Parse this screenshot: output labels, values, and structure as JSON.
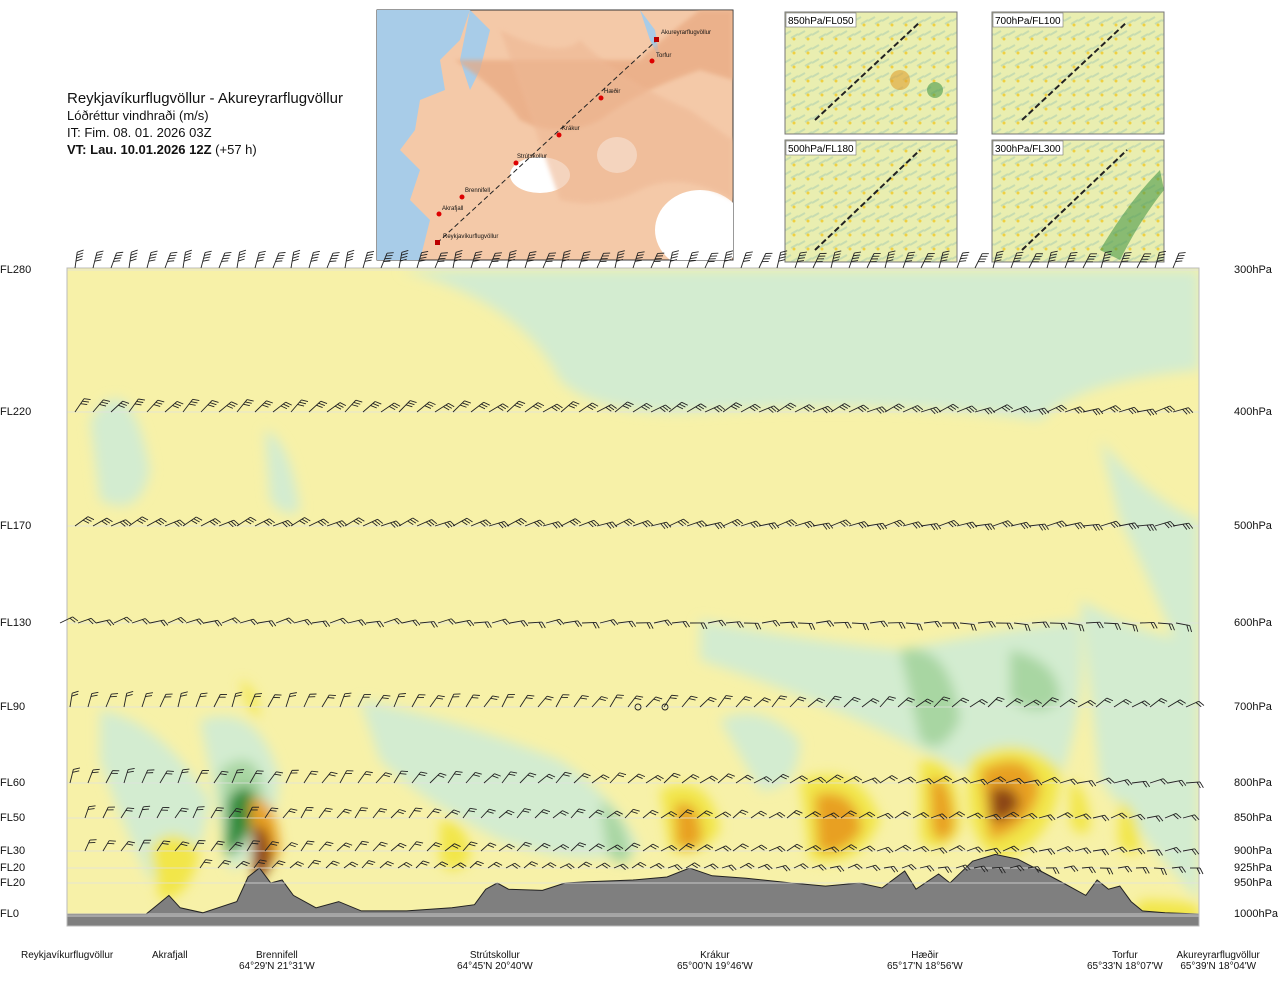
{
  "title": {
    "route": "Reykjavíkurflugvöllur - Akureyrarflugvöllur",
    "parameter": "Lóðréttur vindhraði (m/s)",
    "issued": "IT: Fim. 08. 01. 2026 03Z",
    "valid_prefix": "VT:",
    "valid": "Lau. 10.01.2026 12Z",
    "lead": "(+57 h)"
  },
  "inset_map": {
    "places": [
      "Akureyrarflugvöllur",
      "Torfur",
      "Hæðir",
      "Krákur",
      "Strútskollur",
      "Brennifell",
      "Akrafjall",
      "Reykjavíkurflugvöllur"
    ]
  },
  "level_maps": [
    "850hPa/FL050",
    "700hPa/FL100",
    "500hPa/FL180",
    "300hPa/FL300"
  ],
  "colors": {
    "strong_down": "#8b4513",
    "mod_down": "#e8a020",
    "weak_down": "#f2e64a",
    "neutral": "#f7f1a8",
    "weak_up": "#d3ecd0",
    "mod_up": "#a8d6a2",
    "strong_up": "#2e8b3a",
    "terrain": "#7f7f7f"
  },
  "chart_data": {
    "type": "heatmap",
    "title": "Reykjavíkurflugvöllur - Akureyrarflugvöllur",
    "y_left_labels": [
      "FL280",
      "FL220",
      "FL170",
      "FL130",
      "FL90",
      "FL60",
      "FL50",
      "FL30",
      "FL20",
      "FL20",
      "FL0"
    ],
    "y_right_labels": [
      "300hPa",
      "400hPa",
      "500hPa",
      "600hPa",
      "700hPa",
      "800hPa",
      "850hPa",
      "900hPa",
      "925hPa",
      "950hPa",
      "1000hPa"
    ],
    "pressure_levels_hpa": [
      300,
      400,
      500,
      600,
      700,
      800,
      850,
      900,
      925,
      950,
      1000
    ],
    "x_locations": [
      {
        "name": "Reykjavíkurflugvöllur",
        "coord": ""
      },
      {
        "name": "Akrafjall",
        "coord": ""
      },
      {
        "name": "Brennifell",
        "coord": "64°29'N 21°31'W"
      },
      {
        "name": "Strútskollur",
        "coord": "64°45'N 20°40'W"
      },
      {
        "name": "Krákur",
        "coord": "65°00'N 19°46'W"
      },
      {
        "name": "Hæðir",
        "coord": "65°17'N 18°56'W"
      },
      {
        "name": "Torfur",
        "coord": "65°33'N 18°07'W"
      },
      {
        "name": "Akureyrarflugvöllur",
        "coord": "65°39'N 18°04'W"
      }
    ],
    "x_fraction": [
      0.0,
      0.08,
      0.18,
      0.38,
      0.55,
      0.72,
      0.93,
      1.0
    ],
    "terrain_profile_hpa": [
      [
        0.0,
        1000
      ],
      [
        0.07,
        1000
      ],
      [
        0.08,
        985
      ],
      [
        0.09,
        970
      ],
      [
        0.1,
        990
      ],
      [
        0.12,
        998
      ],
      [
        0.15,
        980
      ],
      [
        0.16,
        940
      ],
      [
        0.17,
        925
      ],
      [
        0.18,
        950
      ],
      [
        0.19,
        945
      ],
      [
        0.2,
        970
      ],
      [
        0.22,
        990
      ],
      [
        0.24,
        980
      ],
      [
        0.26,
        995
      ],
      [
        0.3,
        995
      ],
      [
        0.34,
        990
      ],
      [
        0.36,
        985
      ],
      [
        0.37,
        960
      ],
      [
        0.38,
        950
      ],
      [
        0.39,
        960
      ],
      [
        0.42,
        962
      ],
      [
        0.44,
        950
      ],
      [
        0.46,
        948
      ],
      [
        0.5,
        945
      ],
      [
        0.53,
        940
      ],
      [
        0.55,
        925
      ],
      [
        0.57,
        938
      ],
      [
        0.6,
        942
      ],
      [
        0.64,
        950
      ],
      [
        0.67,
        955
      ],
      [
        0.7,
        950
      ],
      [
        0.72,
        958
      ],
      [
        0.74,
        930
      ],
      [
        0.75,
        960
      ],
      [
        0.77,
        935
      ],
      [
        0.78,
        950
      ],
      [
        0.8,
        915
      ],
      [
        0.82,
        905
      ],
      [
        0.84,
        912
      ],
      [
        0.86,
        930
      ],
      [
        0.88,
        950
      ],
      [
        0.9,
        970
      ],
      [
        0.91,
        945
      ],
      [
        0.92,
        960
      ],
      [
        0.93,
        955
      ],
      [
        0.94,
        980
      ],
      [
        0.95,
        995
      ],
      [
        0.97,
        998
      ],
      [
        1.0,
        1000
      ]
    ]
  }
}
